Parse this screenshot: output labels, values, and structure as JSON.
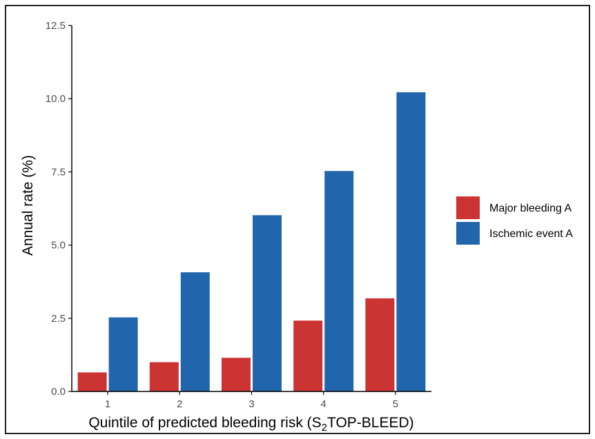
{
  "chart_data": {
    "type": "bar",
    "categories": [
      "1",
      "2",
      "3",
      "4",
      "5"
    ],
    "series": [
      {
        "name": "Major bleeding A",
        "color": "#cc3333",
        "values": [
          0.65,
          1.0,
          1.15,
          2.42,
          3.18
        ]
      },
      {
        "name": "Ischemic event A",
        "color": "#2166ac",
        "values": [
          2.53,
          4.07,
          6.02,
          7.53,
          10.22
        ]
      }
    ],
    "ylabel": "Annual rate (%)",
    "xlabel": {
      "text": "Quintile of predicted bleeding risk  (S",
      "subscript": "2",
      "suffix": "TOP-BLEED)"
    },
    "yticks": [
      "0.0",
      "2.5",
      "5.0",
      "7.5",
      "10.0",
      "12.5"
    ],
    "ylim": [
      0,
      12.5
    ],
    "grid": false,
    "legend_position": "right"
  }
}
